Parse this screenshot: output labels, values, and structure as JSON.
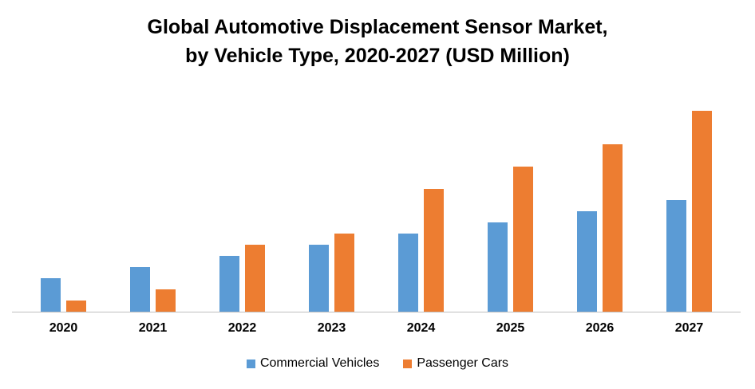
{
  "chart_data": {
    "type": "bar",
    "title_line1": "Global Automotive Displacement Sensor Market,",
    "title_line2": "by Vehicle Type, 2020-2027 (USD Million)",
    "categories": [
      "2020",
      "2021",
      "2022",
      "2023",
      "2024",
      "2025",
      "2026",
      "2027"
    ],
    "series": [
      {
        "name": "Commercial Vehicles",
        "color": "#5B9BD5",
        "values": [
          3,
          4,
          5,
          6,
          7,
          8,
          9,
          10
        ]
      },
      {
        "name": "Passenger Cars",
        "color": "#ED7D31",
        "values": [
          1,
          2,
          6,
          7,
          11,
          13,
          15,
          18
        ]
      }
    ],
    "xlabel": "",
    "ylabel": "",
    "ylim": [
      0,
      19
    ],
    "y_axis_shown": false,
    "grid": false,
    "legend": "bottom"
  }
}
